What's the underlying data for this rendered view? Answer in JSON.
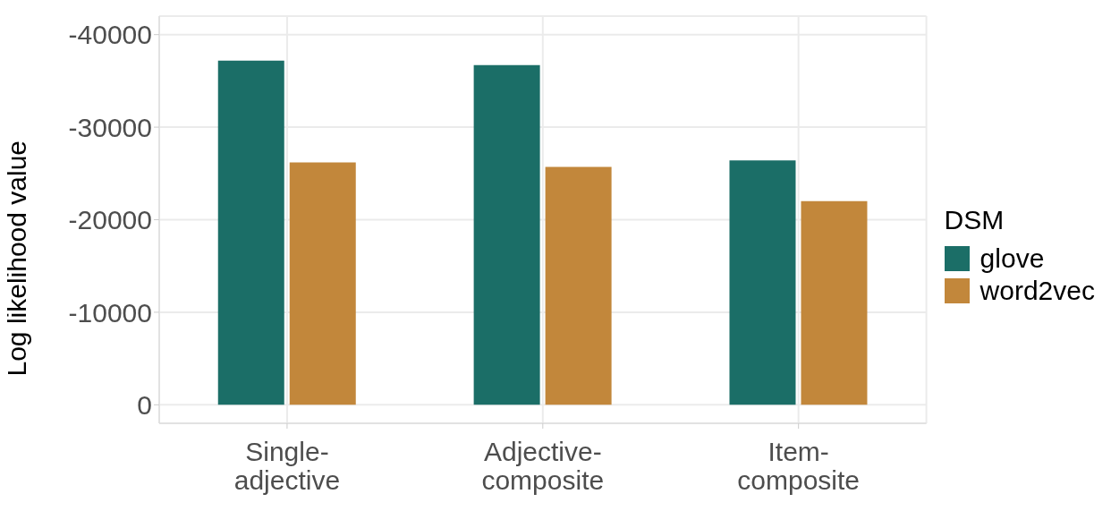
{
  "chart_data": {
    "type": "bar",
    "xlabel": null,
    "ylabel": "Log likelihood value",
    "legend_title": "DSM",
    "categories": [
      "Single-adjective",
      "Adjective-composite",
      "Item-composite"
    ],
    "series": [
      {
        "name": "glove",
        "color": "#1b6e67",
        "values": [
          -37200,
          -36700,
          -26400
        ]
      },
      {
        "name": "word2vec",
        "color": "#c2873b",
        "values": [
          -26200,
          -25700,
          -22000
        ]
      }
    ],
    "ylim": [
      2000,
      -42000
    ],
    "yticks": [
      0,
      -10000,
      -20000,
      -30000,
      -40000
    ],
    "grid": true,
    "legend": "right"
  }
}
